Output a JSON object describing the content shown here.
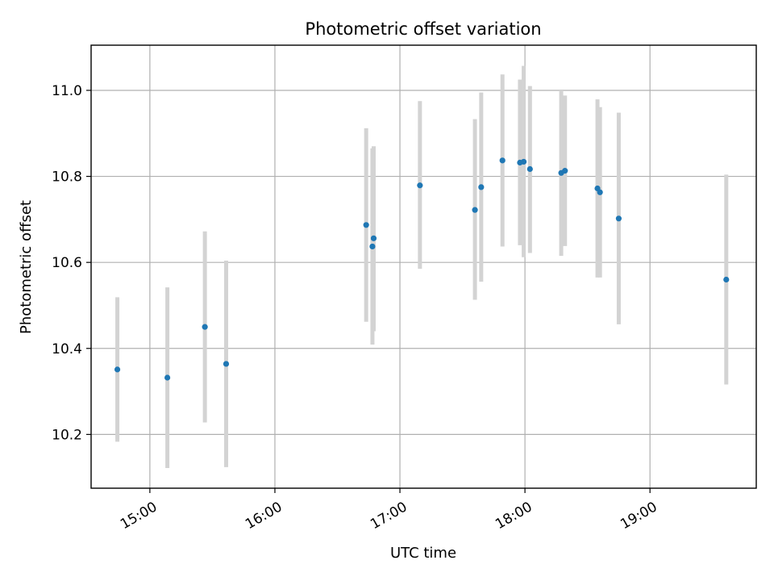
{
  "chart_data": {
    "type": "scatter",
    "title": "Photometric offset variation",
    "xlabel": "UTC time",
    "ylabel": "Photometric offset",
    "x_unit": "UTC time (hours, decimal)",
    "xlim": [
      14.53,
      19.85
    ],
    "ylim": [
      10.075,
      11.105
    ],
    "x_ticks": [
      {
        "value": 15.0,
        "label": "15:00"
      },
      {
        "value": 16.0,
        "label": "16:00"
      },
      {
        "value": 17.0,
        "label": "17:00"
      },
      {
        "value": 18.0,
        "label": "18:00"
      },
      {
        "value": 19.0,
        "label": "19:00"
      }
    ],
    "y_ticks": [
      {
        "value": 10.2,
        "label": "10.2"
      },
      {
        "value": 10.4,
        "label": "10.4"
      },
      {
        "value": 10.6,
        "label": "10.6"
      },
      {
        "value": 10.8,
        "label": "10.8"
      },
      {
        "value": 11.0,
        "label": "11.0"
      }
    ],
    "grid": true,
    "marker_color": "#1f77b4",
    "errorbar_color": "#d3d3d3",
    "points": [
      {
        "x": 14.74,
        "y": 10.351,
        "ylow": 10.183,
        "yhigh": 10.519
      },
      {
        "x": 15.14,
        "y": 10.332,
        "ylow": 10.122,
        "yhigh": 10.542
      },
      {
        "x": 15.44,
        "y": 10.45,
        "ylow": 10.228,
        "yhigh": 10.672
      },
      {
        "x": 15.61,
        "y": 10.364,
        "ylow": 10.124,
        "yhigh": 10.604
      },
      {
        "x": 16.73,
        "y": 10.687,
        "ylow": 10.462,
        "yhigh": 10.912
      },
      {
        "x": 16.79,
        "y": 10.656,
        "ylow": 10.44,
        "yhigh": 10.87
      },
      {
        "x": 16.78,
        "y": 10.637,
        "ylow": 10.409,
        "yhigh": 10.865
      },
      {
        "x": 17.16,
        "y": 10.779,
        "ylow": 10.585,
        "yhigh": 10.975
      },
      {
        "x": 17.6,
        "y": 10.722,
        "ylow": 10.513,
        "yhigh": 10.933
      },
      {
        "x": 17.65,
        "y": 10.775,
        "ylow": 10.555,
        "yhigh": 10.995
      },
      {
        "x": 17.82,
        "y": 10.837,
        "ylow": 10.637,
        "yhigh": 11.037
      },
      {
        "x": 17.96,
        "y": 10.832,
        "ylow": 10.64,
        "yhigh": 11.025
      },
      {
        "x": 17.99,
        "y": 10.834,
        "ylow": 10.612,
        "yhigh": 11.057
      },
      {
        "x": 18.04,
        "y": 10.817,
        "ylow": 10.622,
        "yhigh": 11.01
      },
      {
        "x": 18.29,
        "y": 10.808,
        "ylow": 10.615,
        "yhigh": 11.0
      },
      {
        "x": 18.32,
        "y": 10.813,
        "ylow": 10.638,
        "yhigh": 10.988
      },
      {
        "x": 18.58,
        "y": 10.772,
        "ylow": 10.565,
        "yhigh": 10.979
      },
      {
        "x": 18.6,
        "y": 10.763,
        "ylow": 10.565,
        "yhigh": 10.961
      },
      {
        "x": 18.75,
        "y": 10.702,
        "ylow": 10.456,
        "yhigh": 10.948
      },
      {
        "x": 19.61,
        "y": 10.56,
        "ylow": 10.316,
        "yhigh": 10.804
      }
    ]
  }
}
